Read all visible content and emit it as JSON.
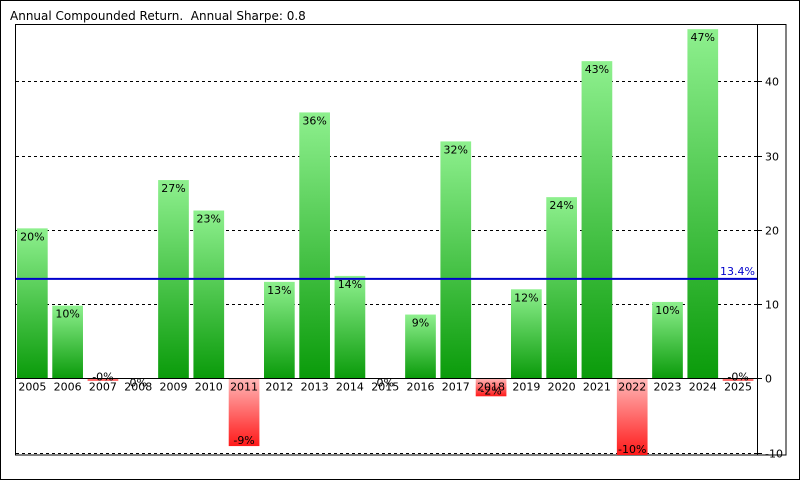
{
  "chart_data": {
    "type": "bar",
    "title": "Annual Compounded Return.  Annual Sharpe: 0.8",
    "categories": [
      "2005",
      "2006",
      "2007",
      "2008",
      "2009",
      "2010",
      "2011",
      "2012",
      "2013",
      "2014",
      "2015",
      "2016",
      "2017",
      "2018",
      "2019",
      "2020",
      "2021",
      "2022",
      "2023",
      "2024",
      "2025"
    ],
    "values": [
      20.2,
      9.8,
      -0.3,
      0.0,
      26.7,
      22.6,
      -9.1,
      13.0,
      35.8,
      13.8,
      0.0,
      8.6,
      31.9,
      -2.4,
      12.0,
      24.4,
      42.7,
      -10.3,
      10.3,
      47.0,
      -0.3
    ],
    "labels": [
      "20%",
      "10%",
      "-0%",
      "0%",
      "27%",
      "23%",
      "-9%",
      "13%",
      "36%",
      "14%",
      "0%",
      "9%",
      "32%",
      "-2%",
      "12%",
      "24%",
      "43%",
      "-10%",
      "10%",
      "47%",
      "-0%"
    ],
    "ylim": [
      -10.3,
      47.7
    ],
    "yticks": [
      -10,
      0,
      10,
      20,
      30,
      40
    ],
    "grid": true,
    "reference_line": {
      "value": 13.4,
      "label": "13.4%",
      "color": "#0000cc"
    },
    "colors": {
      "positive_top": "#8ef08e",
      "positive_bottom": "#0a9b0a",
      "negative_top": "#ffb8b8",
      "negative_bottom": "#ff1a1a",
      "grid": "#000000"
    }
  }
}
